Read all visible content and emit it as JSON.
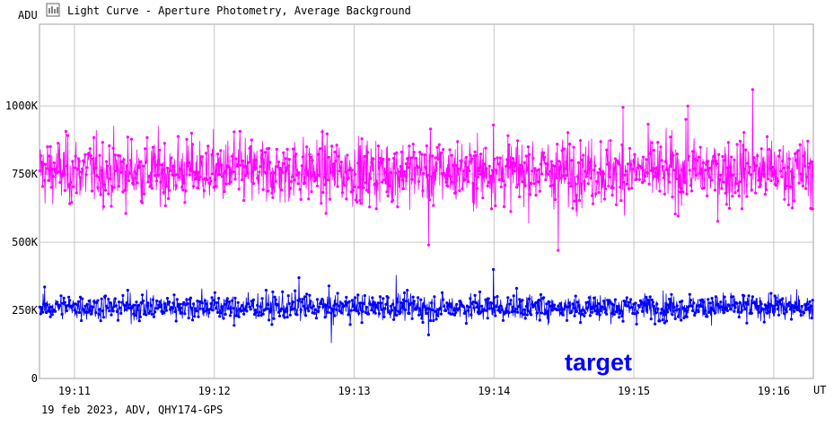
{
  "window": {
    "title": "Light Curve - Aperture Photometry, Average Background",
    "icon": "light-curve-icon"
  },
  "footer": {
    "info": "19 feb 2023, ADV, QHY174-GPS"
  },
  "chart_data": {
    "type": "line",
    "title": "Light Curve - Aperture Photometry, Average Background",
    "ylabel": "ADU",
    "xlabel": "UT",
    "y_ticks": [
      "0",
      "250K",
      "500K",
      "750K",
      "1000K"
    ],
    "y_tick_values": [
      0,
      250000,
      500000,
      750000,
      1000000
    ],
    "ylim": [
      0,
      1300000
    ],
    "x_ticks": [
      "19:11",
      "19:12",
      "19:13",
      "19:14",
      "19:15",
      "19:16"
    ],
    "x_tick_values": [
      "19:11",
      "19:12",
      "19:13",
      "19:14",
      "19:15",
      "19:16"
    ],
    "xlim": [
      "19:10:45",
      "19:16:17"
    ],
    "grid": true,
    "annotation": "target",
    "series": [
      {
        "color": "#ff00ff",
        "mean": 760000,
        "spread": 95000,
        "sample_values": [
          762000,
          795000,
          710000,
          840000,
          690000,
          775000,
          905000,
          650000,
          755000,
          820000,
          700000,
          780000,
          490000,
          760000,
          930000,
          735000,
          470000,
          810000,
          995000,
          760000,
          1000000,
          725000,
          1060000,
          790000
        ]
      },
      {
        "color": "#0000ff",
        "mean": 262000,
        "spread": 38000,
        "sample_values": [
          262000,
          240000,
          300000,
          215000,
          280000,
          330000,
          195000,
          255000,
          370000,
          130000,
          275000,
          380000,
          160000,
          290000,
          400000,
          245000,
          265000,
          305000,
          210000,
          260000
        ]
      }
    ]
  }
}
